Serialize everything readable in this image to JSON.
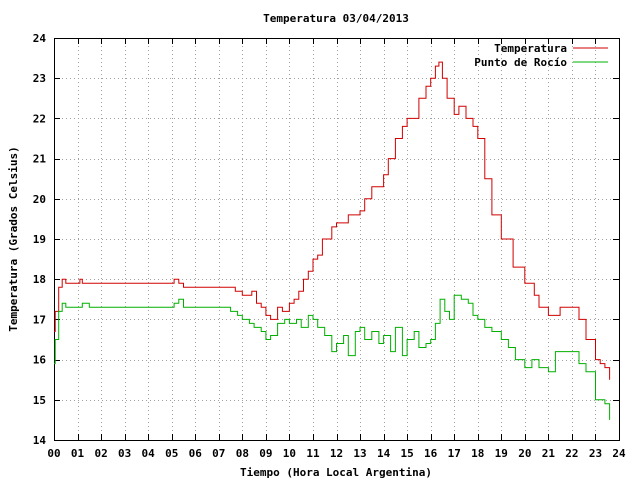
{
  "chart_data": {
    "type": "line",
    "title": "Temperatura 03/04/2013",
    "xlabel": "Tiempo (Hora Local Argentina)",
    "ylabel": "Temperatura (Grados Celsius)",
    "xlim": [
      0,
      24
    ],
    "ylim": [
      14,
      24
    ],
    "grid": true,
    "legend_position": "top-right",
    "x_tick_labels": [
      "00",
      "01",
      "02",
      "03",
      "04",
      "05",
      "06",
      "07",
      "08",
      "09",
      "10",
      "11",
      "12",
      "13",
      "14",
      "15",
      "16",
      "17",
      "18",
      "19",
      "20",
      "21",
      "22",
      "23",
      "24"
    ],
    "y_tick_labels": [
      "14",
      "15",
      "16",
      "17",
      "18",
      "19",
      "20",
      "21",
      "22",
      "23",
      "24"
    ],
    "series": [
      {
        "name": "Temperatura",
        "color": "#d00000",
        "x": [
          0.0,
          0.05,
          0.2,
          0.35,
          0.5,
          0.8,
          1.0,
          1.1,
          1.2,
          1.5,
          2.0,
          3.0,
          4.0,
          5.0,
          5.1,
          5.3,
          5.5,
          6.0,
          6.5,
          7.0,
          7.5,
          7.7,
          8.0,
          8.2,
          8.4,
          8.6,
          8.8,
          9.0,
          9.2,
          9.5,
          9.7,
          10.0,
          10.2,
          10.4,
          10.6,
          10.8,
          11.0,
          11.2,
          11.4,
          11.6,
          11.8,
          12.0,
          12.2,
          12.5,
          12.7,
          13.0,
          13.2,
          13.5,
          14.0,
          14.2,
          14.5,
          14.8,
          15.0,
          15.5,
          15.8,
          16.0,
          16.2,
          16.35,
          16.5,
          16.7,
          17.0,
          17.2,
          17.5,
          17.8,
          18.0,
          18.3,
          18.6,
          19.0,
          19.5,
          20.0,
          20.4,
          20.6,
          21.0,
          21.5,
          22.0,
          22.3,
          22.6,
          23.0,
          23.2,
          23.4,
          23.6
        ],
        "y": [
          16.7,
          17.2,
          17.8,
          18.0,
          17.9,
          17.9,
          17.9,
          18.0,
          17.9,
          17.9,
          17.9,
          17.9,
          17.9,
          17.9,
          18.0,
          17.9,
          17.8,
          17.8,
          17.8,
          17.8,
          17.8,
          17.7,
          17.6,
          17.6,
          17.7,
          17.4,
          17.3,
          17.1,
          17.0,
          17.3,
          17.2,
          17.4,
          17.5,
          17.7,
          18.0,
          18.2,
          18.5,
          18.6,
          19.0,
          19.0,
          19.3,
          19.4,
          19.4,
          19.6,
          19.6,
          19.7,
          20.0,
          20.3,
          20.6,
          21.0,
          21.5,
          21.8,
          22.0,
          22.5,
          22.8,
          23.0,
          23.3,
          23.4,
          23.0,
          22.5,
          22.1,
          22.3,
          22.0,
          21.8,
          21.5,
          20.5,
          19.6,
          19.0,
          18.3,
          17.9,
          17.6,
          17.3,
          17.1,
          17.3,
          17.3,
          17.0,
          16.5,
          16.0,
          15.9,
          15.8,
          15.5
        ]
      },
      {
        "name": "Punto de Rocío",
        "color": "#00b000",
        "x": [
          0.0,
          0.05,
          0.2,
          0.35,
          0.5,
          0.8,
          1.0,
          1.2,
          1.5,
          2.0,
          3.0,
          4.0,
          5.0,
          5.1,
          5.3,
          5.5,
          6.0,
          6.5,
          7.0,
          7.5,
          7.8,
          8.0,
          8.3,
          8.5,
          8.8,
          9.0,
          9.2,
          9.5,
          9.8,
          10.0,
          10.3,
          10.5,
          10.8,
          11.0,
          11.2,
          11.5,
          11.8,
          12.0,
          12.3,
          12.5,
          12.8,
          13.0,
          13.2,
          13.5,
          13.8,
          14.0,
          14.3,
          14.5,
          14.8,
          15.0,
          15.3,
          15.5,
          15.8,
          16.0,
          16.2,
          16.4,
          16.6,
          16.8,
          17.0,
          17.3,
          17.6,
          17.8,
          18.0,
          18.3,
          18.6,
          19.0,
          19.3,
          19.6,
          20.0,
          20.3,
          20.6,
          21.0,
          21.3,
          21.6,
          22.0,
          22.3,
          22.6,
          23.0,
          23.2,
          23.4,
          23.6
        ],
        "y": [
          15.9,
          16.5,
          17.2,
          17.4,
          17.3,
          17.3,
          17.3,
          17.4,
          17.3,
          17.3,
          17.3,
          17.3,
          17.3,
          17.4,
          17.5,
          17.3,
          17.3,
          17.3,
          17.3,
          17.2,
          17.1,
          17.0,
          16.9,
          16.8,
          16.7,
          16.5,
          16.6,
          16.9,
          17.0,
          16.9,
          17.0,
          16.8,
          17.1,
          17.0,
          16.8,
          16.6,
          16.2,
          16.4,
          16.6,
          16.1,
          16.7,
          16.8,
          16.5,
          16.7,
          16.4,
          16.6,
          16.2,
          16.8,
          16.1,
          16.5,
          16.7,
          16.3,
          16.4,
          16.5,
          16.9,
          17.5,
          17.2,
          17.0,
          17.6,
          17.5,
          17.4,
          17.1,
          17.0,
          16.8,
          16.7,
          16.5,
          16.3,
          16.0,
          15.8,
          16.0,
          15.8,
          15.7,
          16.2,
          16.2,
          16.2,
          15.9,
          15.7,
          15.0,
          15.0,
          14.9,
          14.5
        ]
      }
    ]
  }
}
